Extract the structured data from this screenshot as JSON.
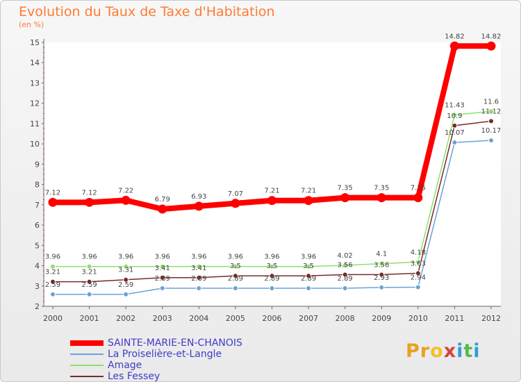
{
  "title": "Evolution du Taux de Taxe d'Habitation",
  "subtitle": "(en %)",
  "logo": {
    "text": "Proxiti",
    "letter_colors": [
      "#e8a21c",
      "#e8a21c",
      "#f2c128",
      "#d8413f",
      "#2e9fd6",
      "#59b84a",
      "#2e9fd6"
    ]
  },
  "chart_data": {
    "type": "line",
    "x": [
      2000,
      2001,
      2002,
      2003,
      2004,
      2005,
      2006,
      2007,
      2008,
      2009,
      2010,
      2011,
      2012
    ],
    "ylim": [
      2,
      15
    ],
    "yticks": [
      2,
      3,
      4,
      5,
      6,
      7,
      8,
      9,
      10,
      11,
      12,
      13,
      14,
      15
    ],
    "grid": false,
    "legend_position": "bottom-left",
    "series": [
      {
        "name": "SAINTE-MARIE-EN-CHANOIS",
        "color": "#ff0000",
        "values": [
          7.12,
          7.12,
          7.22,
          6.79,
          6.93,
          7.07,
          7.21,
          7.21,
          7.35,
          7.35,
          7.35,
          14.82,
          14.82
        ],
        "labels": [
          "7.12",
          "7.12",
          "7.22",
          "6.79",
          "6.93",
          "7.07",
          "7.21",
          "7.21",
          "7.35",
          "7.35",
          "7.35",
          "14.82",
          "14.82"
        ]
      },
      {
        "name": "La Proiselière-et-Langle",
        "color": "#6aa2d8",
        "values": [
          2.59,
          2.59,
          2.59,
          2.89,
          2.89,
          2.89,
          2.89,
          2.89,
          2.89,
          2.93,
          2.94,
          10.07,
          10.17
        ],
        "labels": [
          "2.59",
          "2.59",
          "2.59",
          "2.89",
          "2.89",
          "2.89",
          "2.89",
          "2.89",
          "2.89",
          "2.93",
          "2.94",
          "10.07",
          "10.17"
        ]
      },
      {
        "name": "Amage",
        "color": "#8ee06c",
        "values": [
          3.96,
          3.96,
          3.96,
          3.96,
          3.96,
          3.96,
          3.96,
          3.96,
          4.02,
          4.1,
          4.18,
          11.43,
          11.6
        ],
        "labels": [
          "3.96",
          "3.96",
          "3.96",
          "3.96",
          "3.96",
          "3.96",
          "3.96",
          "3.96",
          "4.02",
          "4.1",
          "4.18",
          "11.43",
          "11.6"
        ]
      },
      {
        "name": "Les Fessey",
        "color": "#7a2a2a",
        "values": [
          3.21,
          3.21,
          3.31,
          3.41,
          3.41,
          3.5,
          3.5,
          3.5,
          3.56,
          3.56,
          3.63,
          10.9,
          11.12
        ],
        "labels": [
          "3.21",
          "3.21",
          "3.31",
          "3.41",
          "3.41",
          "3.5",
          "3.5",
          "3.5",
          "3.56",
          "3.56",
          "3.63",
          "10.9",
          "11.12"
        ]
      }
    ]
  }
}
